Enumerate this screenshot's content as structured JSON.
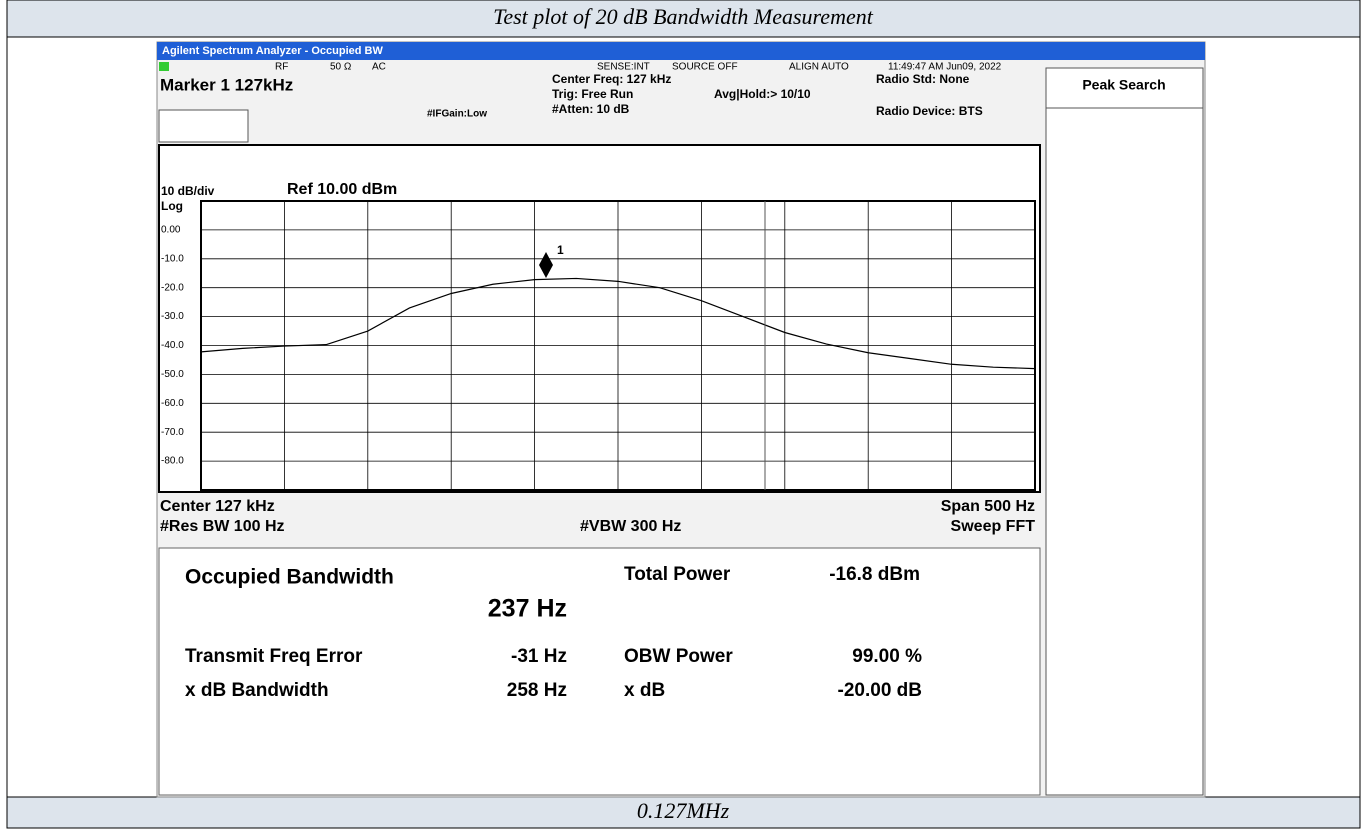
{
  "header": {
    "title": "Test plot of 20 dB Bandwidth Measurement"
  },
  "footer": {
    "label": "0.127MHz"
  },
  "window": {
    "title": "Agilent Spectrum Analyzer - Occupied BW"
  },
  "status": {
    "rf": "RF",
    "impedance": "50 Ω",
    "coupling": "AC",
    "sense": "SENSE:INT",
    "source": "SOURCE OFF",
    "align": "ALIGN AUTO",
    "timestamp": "11:49:47 AM Jun09, 2022"
  },
  "settings": {
    "marker": "Marker 1 127kHz",
    "center_freq": "Center Freq: 127 kHz",
    "trig": "Trig: Free Run",
    "avg_hold": "Avg|Hold:> 10/10",
    "atten": "#Atten: 10 dB",
    "if_gain": "#IFGain:Low",
    "radio_std": "Radio Std: None",
    "radio_device": "Radio Device: BTS"
  },
  "plot": {
    "type": "line",
    "scale_label": "10 dB/div",
    "ref_label": "Ref 10.00 dBm",
    "scale_type": "Log",
    "ylim": [
      -90,
      10
    ],
    "yticks": [
      {
        "value": 0,
        "label": "0.00"
      },
      {
        "value": -10,
        "label": "-10.0"
      },
      {
        "value": -20,
        "label": "-20.0"
      },
      {
        "value": -30,
        "label": "-30.0"
      },
      {
        "value": -40,
        "label": "-40.0"
      },
      {
        "value": -50,
        "label": "-50.0"
      },
      {
        "value": -60,
        "label": "-60.0"
      },
      {
        "value": -70,
        "label": "-70.0"
      },
      {
        "value": -80,
        "label": "-80.0"
      }
    ],
    "grid": true,
    "trace": {
      "color": "#000000",
      "values": [
        -42.2,
        -41,
        -40.2,
        -39.7,
        -35,
        -27,
        -22,
        -18.8,
        -17.2,
        -16.8,
        -17.8,
        -20,
        -24.5,
        -30,
        -35.5,
        -39.5,
        -42.5,
        -44.5,
        -46.5,
        -47.5,
        -48
      ]
    },
    "marker_label": "1",
    "center": "Center  127 kHz",
    "span": "Span 500 Hz",
    "res_bw": "#Res BW  100 Hz",
    "vbw": "#VBW  300 Hz",
    "sweep": "Sweep FFT"
  },
  "results": {
    "obw_label": "Occupied Bandwidth",
    "obw_value": "237 Hz",
    "total_power_label": "Total Power",
    "total_power_value": "-16.8 dBm",
    "freq_error_label": "Transmit Freq Error",
    "freq_error_value": "-31 Hz",
    "obw_power_label": "OBW Power",
    "obw_power_value": "99.00 %",
    "xdb_bw_label": "x dB Bandwidth",
    "xdb_bw_value": "258 Hz",
    "xdb_label": "x dB",
    "xdb_value": "-20.00 dB"
  },
  "softkey": {
    "label": "Peak Search"
  }
}
